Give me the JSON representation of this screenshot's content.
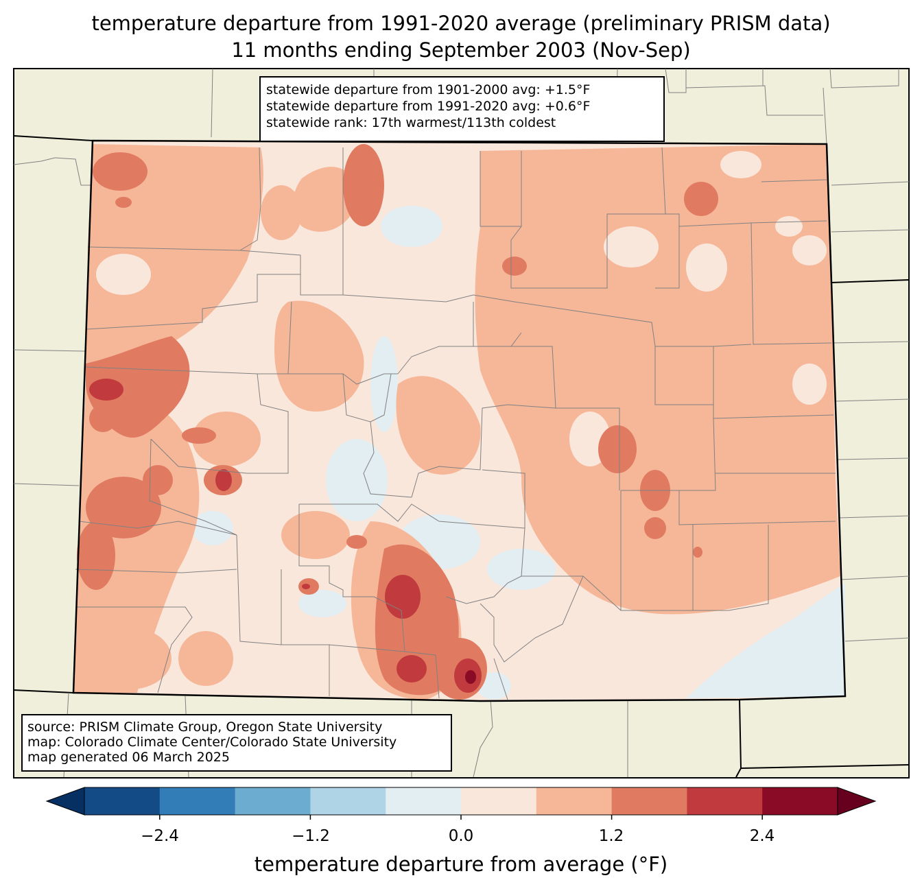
{
  "title": {
    "line1": "temperature departure from 1991-2020 average (preliminary PRISM data)",
    "line2": "11 months ending September 2003 (Nov-Sep)"
  },
  "stats": {
    "line1": "statewide departure from 1901-2000 avg: +1.5°F",
    "line2": "statewide departure from 1991-2020 avg: +0.6°F",
    "line3": "statewide rank: 17th warmest/113th coldest"
  },
  "source": {
    "line1": "source: PRISM Climate Group, Oregon State University",
    "line2": "map: Colorado Climate Center/Colorado State University",
    "line3": "map generated 06 March 2025"
  },
  "colorbar": {
    "label": "temperature departure from average (°F)",
    "ticks": [
      "−2.4",
      "−1.2",
      "0.0",
      "1.2",
      "2.4"
    ],
    "bins": [
      {
        "range": "< -3.0",
        "color": "#053061"
      },
      {
        "range": "-3.0 to -2.4",
        "color": "#134b87"
      },
      {
        "range": "-2.4 to -1.8",
        "color": "#327db7"
      },
      {
        "range": "-1.8 to -1.2",
        "color": "#6bacd0"
      },
      {
        "range": "-1.2 to -0.6",
        "color": "#afd4e6"
      },
      {
        "range": "-0.6 to 0.0",
        "color": "#e3eef3"
      },
      {
        "range": "0.0 to 0.6",
        "color": "#fae7dc"
      },
      {
        "range": "0.6 to 1.2",
        "color": "#f6b799"
      },
      {
        "range": "1.2 to 1.8",
        "color": "#e07b62"
      },
      {
        "range": "1.8 to 2.4",
        "color": "#c13a3e"
      },
      {
        "range": "2.4 to 3.0",
        "color": "#8a0b25"
      },
      {
        "range": "> 3.0",
        "color": "#67001f"
      }
    ]
  },
  "colors": {
    "land_background": "#efefdc",
    "county_lines": "#808080",
    "state_border": "#000000"
  }
}
